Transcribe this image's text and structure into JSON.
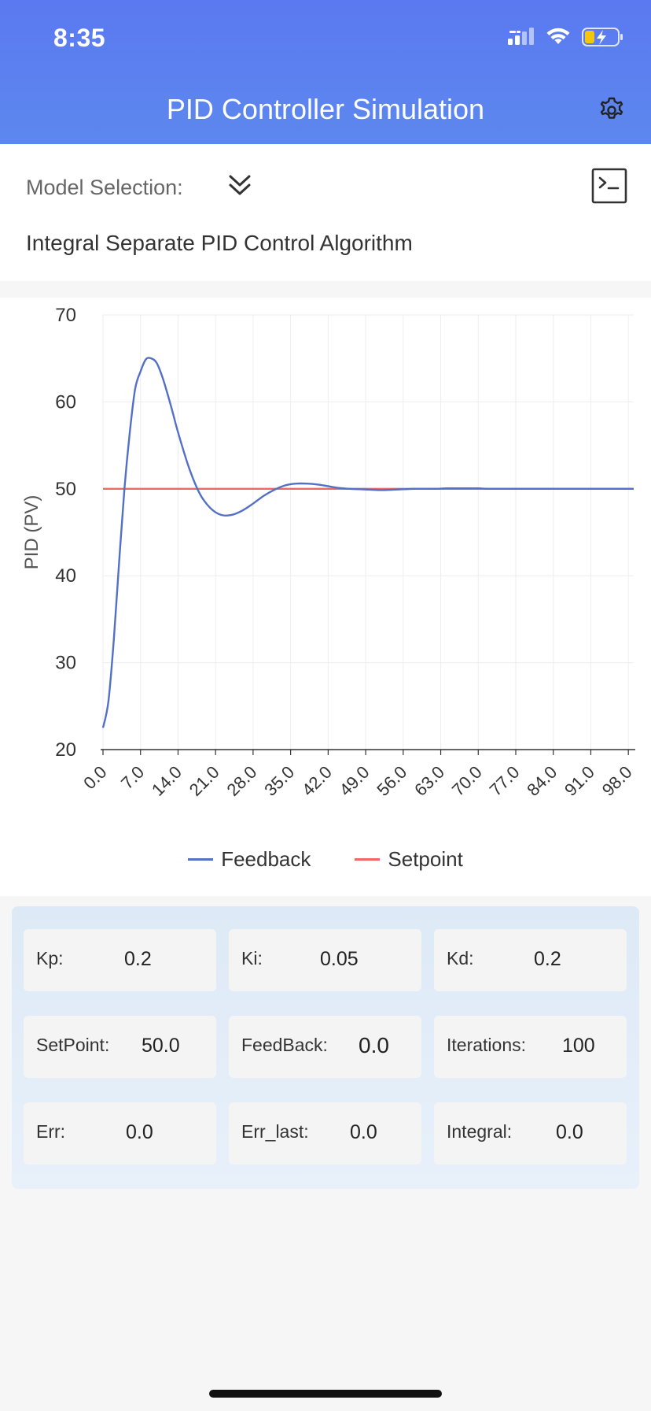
{
  "status_bar": {
    "time": "8:35"
  },
  "header": {
    "title": "PID Controller Simulation"
  },
  "model": {
    "label": "Model Selection:",
    "algorithm": "Integral Separate PID Control Algorithm"
  },
  "chart_data": {
    "type": "line",
    "ylabel": "PID (PV)",
    "xlabel": "",
    "ylim": [
      20,
      70
    ],
    "yticks": [
      "20",
      "30",
      "40",
      "50",
      "60",
      "70"
    ],
    "xticks": [
      "0.0",
      "7.0",
      "14.0",
      "21.0",
      "28.0",
      "35.0",
      "42.0",
      "49.0",
      "56.0",
      "63.0",
      "70.0",
      "77.0",
      "84.0",
      "91.0",
      "98.0"
    ],
    "xlim": [
      0,
      99
    ],
    "grid": true,
    "legend_position": "bottom",
    "series": [
      {
        "name": "Feedback",
        "color": "#5470c6",
        "x": [
          0,
          1,
          2,
          3,
          4,
          5,
          6,
          7,
          8,
          9,
          10,
          11,
          12,
          13,
          14,
          16,
          18,
          20,
          22,
          24,
          26,
          28,
          30,
          32,
          34,
          36,
          38,
          40,
          42,
          44,
          46,
          48,
          50,
          52,
          54,
          56,
          58,
          60,
          62,
          64,
          66,
          68,
          70,
          72,
          74,
          76,
          78,
          80,
          84,
          88,
          92,
          96,
          99
        ],
        "y": [
          22.5,
          25.5,
          32.5,
          41.5,
          50.0,
          56.5,
          61.5,
          63.5,
          64.9,
          65.0,
          64.5,
          63.0,
          61.0,
          58.8,
          56.5,
          52.5,
          49.5,
          47.8,
          47.0,
          47.0,
          47.5,
          48.3,
          49.2,
          49.9,
          50.4,
          50.6,
          50.6,
          50.5,
          50.3,
          50.1,
          50.0,
          49.95,
          49.9,
          49.85,
          49.9,
          49.95,
          50.0,
          50.0,
          50.0,
          50.05,
          50.05,
          50.05,
          50.05,
          50.0,
          50.0,
          50.0,
          50.0,
          50.0,
          50.0,
          50.0,
          50.0,
          50.0,
          50.0
        ]
      },
      {
        "name": "Setpoint",
        "color": "#ee6666",
        "x": [
          0,
          99
        ],
        "y": [
          50,
          50
        ]
      }
    ]
  },
  "params": {
    "kp": {
      "label": "Kp:",
      "value": "0.2"
    },
    "ki": {
      "label": "Ki:",
      "value": "0.05"
    },
    "kd": {
      "label": "Kd:",
      "value": "0.2"
    },
    "setpoint": {
      "label": "SetPoint:",
      "value": "50.0"
    },
    "feedback": {
      "label": "FeedBack:",
      "value": "0.0"
    },
    "iterations": {
      "label": "Iterations:",
      "value": "100"
    },
    "err": {
      "label": "Err:",
      "value": "0.0"
    },
    "err_last": {
      "label": "Err_last:",
      "value": "0.0"
    },
    "integral": {
      "label": "Integral:",
      "value": "0.0"
    }
  }
}
